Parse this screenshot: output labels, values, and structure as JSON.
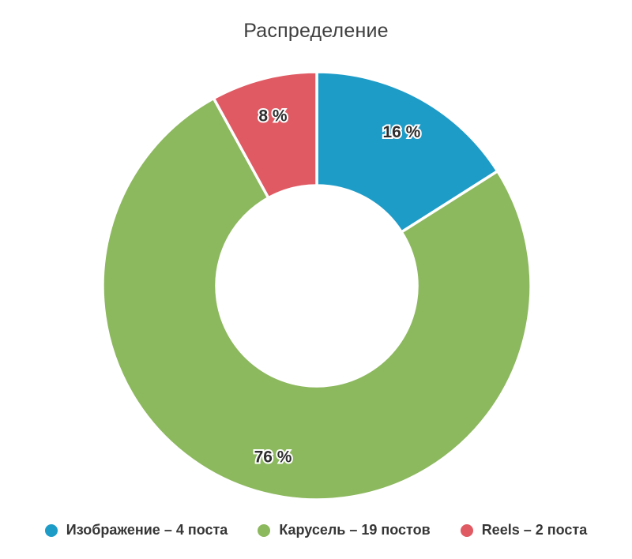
{
  "chart_data": {
    "type": "pie",
    "subtype": "donut",
    "title": "Распределение",
    "legend_position": "bottom",
    "inner_radius_ratio": 0.47,
    "unit": "%",
    "series": [
      {
        "key": "image",
        "name": "Изображение",
        "posts": 4,
        "value": 16,
        "percent_label": "16 %",
        "legend_label": "Изображение – 4 поста",
        "color": "#1e9cc8"
      },
      {
        "key": "carousel",
        "name": "Карусель",
        "posts": 19,
        "value": 76,
        "percent_label": "76 %",
        "legend_label": "Карусель – 19 постов",
        "color": "#8cb85e"
      },
      {
        "key": "reels",
        "name": "Reels",
        "posts": 2,
        "value": 8,
        "percent_label": "8 %",
        "legend_label": "Reels – 2 поста",
        "color": "#e05a63"
      }
    ]
  }
}
